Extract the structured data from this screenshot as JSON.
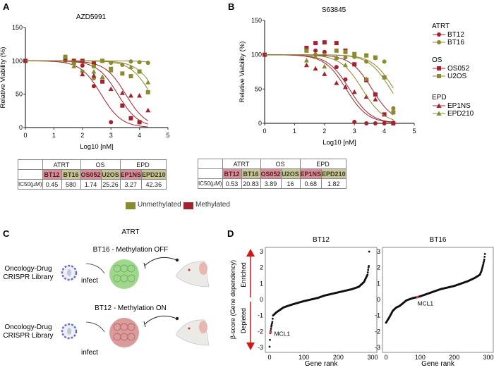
{
  "panels": {
    "a": "A",
    "b": "B",
    "c": "C",
    "d": "D"
  },
  "colors": {
    "methylated": "#a3222d",
    "unmethylated": "#8a8a30"
  },
  "chart_data": [
    {
      "type": "scatter",
      "title": "AZD5991",
      "xlabel": "Log10 [nM]",
      "ylabel": "Relative Viability (%)",
      "xlim": [
        0,
        5
      ],
      "ylim": [
        0,
        150
      ],
      "xticks": [
        "0",
        "1",
        "2",
        "3",
        "4",
        "5"
      ],
      "yticks": [
        "0",
        "50",
        "100",
        "150"
      ],
      "series": [
        {
          "name": "BT12",
          "marker": "circle",
          "group": "methylated",
          "ic50_uM": 0.45,
          "points": [
            [
              0,
              100
            ],
            [
              1.4,
              100
            ],
            [
              1.7,
              98
            ],
            [
              2,
              93
            ],
            [
              2.4,
              62
            ],
            [
              3,
              8
            ]
          ]
        },
        {
          "name": "BT16",
          "marker": "circle",
          "group": "unmethylated",
          "ic50_uM": 580,
          "points": [
            [
              0,
              100
            ],
            [
              1.4,
              100
            ],
            [
              1.7,
              98
            ],
            [
              2,
              84
            ],
            [
              2.4,
              74
            ],
            [
              3,
              97
            ],
            [
              3.4,
              94
            ],
            [
              3.7,
              99
            ],
            [
              4,
              98
            ],
            [
              4.3,
              97
            ]
          ]
        },
        {
          "name": "OS052",
          "marker": "square",
          "group": "methylated",
          "ic50_uM": 1.74,
          "points": [
            [
              0,
              100
            ],
            [
              1.4,
              102
            ],
            [
              1.7,
              100
            ],
            [
              2,
              100
            ],
            [
              2.4,
              96
            ],
            [
              2.7,
              69
            ],
            [
              3.4,
              33
            ],
            [
              3.7,
              14
            ],
            [
              4,
              8
            ]
          ]
        },
        {
          "name": "U2OS",
          "marker": "square",
          "group": "unmethylated",
          "ic50_uM": 25.26,
          "points": [
            [
              1.4,
              106
            ],
            [
              1.7,
              97
            ],
            [
              2.4,
              92
            ],
            [
              2.7,
              100
            ],
            [
              3,
              88
            ],
            [
              3.4,
              81
            ],
            [
              3.7,
              77
            ],
            [
              4,
              84
            ],
            [
              4.3,
              53
            ]
          ]
        },
        {
          "name": "EP1NS",
          "marker": "triangle",
          "group": "methylated",
          "ic50_uM": 3.27,
          "points": [
            [
              2,
              80
            ],
            [
              2.4,
              78
            ],
            [
              3,
              58
            ],
            [
              3.4,
              52
            ],
            [
              3.7,
              48
            ],
            [
              4,
              48
            ],
            [
              4.3,
              26
            ]
          ]
        },
        {
          "name": "EPD210",
          "marker": "triangle",
          "group": "unmethylated",
          "ic50_uM": 42.36,
          "points": [
            [
              1.7,
              92
            ],
            [
              2.4,
              84
            ],
            [
              2.7,
              76
            ],
            [
              3,
              86
            ],
            [
              3.7,
              91
            ],
            [
              4.3,
              68
            ]
          ]
        }
      ]
    },
    {
      "type": "scatter",
      "title": "S63845",
      "xlabel": "Log10 [nM]",
      "ylabel": "Relative Viability (%)",
      "xlim": [
        0,
        5
      ],
      "ylim": [
        0,
        150
      ],
      "xticks": [
        "0",
        "1",
        "2",
        "3",
        "4",
        "5"
      ],
      "yticks": [
        "0",
        "50",
        "100",
        "150"
      ],
      "legend": "right",
      "series": [
        {
          "name": "BT12",
          "marker": "circle",
          "group": "methylated",
          "ic50_uM": 0.53,
          "points": [
            [
              0,
              100
            ],
            [
              1.7,
              106
            ],
            [
              2,
              104
            ],
            [
              2.4,
              82
            ],
            [
              2.7,
              64
            ],
            [
              3,
              2
            ],
            [
              3.4,
              0
            ],
            [
              3.7,
              0
            ],
            [
              4,
              0
            ],
            [
              4.3,
              1
            ]
          ]
        },
        {
          "name": "BT16",
          "marker": "circle",
          "group": "unmethylated",
          "ic50_uM": 20.83,
          "points": [
            [
              1.7,
              100
            ],
            [
              2,
              100
            ],
            [
              2.4,
              95
            ],
            [
              2.7,
              96
            ],
            [
              3,
              97
            ],
            [
              3.4,
              90
            ],
            [
              3.7,
              95
            ],
            [
              4,
              90
            ],
            [
              4.3,
              22
            ]
          ]
        },
        {
          "name": "OS052",
          "marker": "square",
          "group": "methylated",
          "ic50_uM": 3.89,
          "points": [
            [
              0,
              100
            ],
            [
              1.4,
              110
            ],
            [
              1.7,
              117
            ],
            [
              2,
              118
            ],
            [
              2.4,
              117
            ],
            [
              2.7,
              106
            ],
            [
              3,
              86
            ],
            [
              3.4,
              63
            ],
            [
              3.7,
              42
            ],
            [
              4,
              13
            ],
            [
              4.3,
              0
            ]
          ]
        },
        {
          "name": "U2OS",
          "marker": "square",
          "group": "unmethylated",
          "ic50_uM": 16,
          "points": [
            [
              1.4,
              106
            ],
            [
              2.4,
              106
            ],
            [
              2.7,
              104
            ],
            [
              3,
              101
            ],
            [
              3.4,
              99
            ],
            [
              3.7,
              96
            ],
            [
              4,
              67
            ],
            [
              4.3,
              16
            ]
          ]
        },
        {
          "name": "EP1NS",
          "marker": "triangle",
          "group": "methylated",
          "ic50_uM": 0.68,
          "points": [
            [
              1.4,
              85
            ],
            [
              1.7,
              80
            ],
            [
              2,
              72
            ],
            [
              2.4,
              59
            ],
            [
              2.7,
              53
            ],
            [
              3,
              46
            ],
            [
              3.4,
              39
            ],
            [
              3.7,
              35
            ]
          ]
        },
        {
          "name": "EPD210",
          "marker": "triangle",
          "group": "unmethylated",
          "ic50_uM": 1.82,
          "points": [
            [
              1.4,
              92
            ],
            [
              1.7,
              97
            ],
            [
              2,
              83
            ],
            [
              2.4,
              96
            ],
            [
              2.7,
              85
            ],
            [
              3.4,
              65
            ]
          ]
        }
      ]
    },
    {
      "type": "scatter",
      "title": "BT12",
      "xlabel": "Gene rank",
      "ylabel": "β-score (Gene dependency)",
      "xlim": [
        0,
        300
      ],
      "ylim": [
        -3,
        3
      ],
      "xticks": [
        "0",
        "100",
        "200",
        "300"
      ],
      "yticks": [
        "-3",
        "-2",
        "-1",
        "0",
        "1",
        "2",
        "3"
      ],
      "highlight": {
        "label": "MCL1",
        "rank": 3,
        "score": -2.05
      },
      "profile": [
        [
          0,
          -2.95
        ],
        [
          2,
          -2.1
        ],
        [
          5,
          -1.7
        ],
        [
          8,
          -1.4
        ],
        [
          10,
          -1.0
        ],
        [
          20,
          -0.8
        ],
        [
          40,
          -0.5
        ],
        [
          60,
          -0.35
        ],
        [
          80,
          -0.22
        ],
        [
          100,
          -0.1
        ],
        [
          120,
          0
        ],
        [
          140,
          0.1
        ],
        [
          160,
          0.25
        ],
        [
          180,
          0.35
        ],
        [
          200,
          0.45
        ],
        [
          220,
          0.55
        ],
        [
          240,
          0.65
        ],
        [
          260,
          0.8
        ],
        [
          275,
          1.1
        ],
        [
          285,
          1.55
        ],
        [
          288,
          2.0
        ],
        [
          289,
          2.1
        ],
        [
          290,
          3.0
        ]
      ]
    },
    {
      "type": "scatter",
      "title": "BT16",
      "xlabel": "Gene rank",
      "ylabel": "",
      "xlim": [
        0,
        300
      ],
      "ylim": [
        -3,
        3
      ],
      "xticks": [
        "0",
        "100",
        "200",
        "300"
      ],
      "yticks": [
        "-3",
        "-2",
        "-1",
        "0",
        "1",
        "2",
        "3"
      ],
      "highlight": {
        "label": "MCL1",
        "rank": 92,
        "score": 0.15
      },
      "profile": [
        [
          0,
          -1.45
        ],
        [
          10,
          -1.1
        ],
        [
          20,
          -0.7
        ],
        [
          30,
          -0.5
        ],
        [
          40,
          -0.4
        ],
        [
          60,
          -0.05
        ],
        [
          80,
          0.1
        ],
        [
          92,
          0.15
        ],
        [
          100,
          0.2
        ],
        [
          120,
          0.35
        ],
        [
          140,
          0.5
        ],
        [
          160,
          0.65
        ],
        [
          180,
          0.75
        ],
        [
          200,
          0.85
        ],
        [
          220,
          1.0
        ],
        [
          240,
          1.15
        ],
        [
          260,
          1.35
        ],
        [
          275,
          1.55
        ],
        [
          280,
          1.8
        ],
        [
          285,
          2.2
        ],
        [
          288,
          2.5
        ],
        [
          290,
          2.85
        ]
      ]
    }
  ],
  "legend_b": {
    "groups": [
      {
        "title": "ATRT",
        "items": [
          "BT12",
          "BT16"
        ]
      },
      {
        "title": "OS",
        "items": [
          "OS052",
          "U2OS"
        ]
      },
      {
        "title": "EPD",
        "items": [
          "EP1NS",
          "EPD210"
        ]
      }
    ]
  },
  "tables": [
    {
      "groups": [
        "ATRT",
        "OS",
        "EPD"
      ],
      "cells": [
        "BT12",
        "BT16",
        "OS052",
        "U2OS",
        "EP1NS",
        "EPD210"
      ],
      "row_label": "IC50(µM)",
      "values": [
        "0.45",
        "580",
        "1.74",
        "25.26",
        "3.27",
        "42.36"
      ]
    },
    {
      "groups": [
        "ATRT",
        "OS",
        "EPD"
      ],
      "cells": [
        "BT12",
        "BT16",
        "OS052",
        "U2OS",
        "EP1NS",
        "EPD210"
      ],
      "row_label": "IC50(µM)",
      "values": [
        "0.53",
        "20.83",
        "3.89",
        "16",
        "0.68",
        "1.82"
      ]
    }
  ],
  "color_legend": {
    "unmethylated": "Unmethylated",
    "methylated": "Methylated"
  },
  "panel_c": {
    "title": "ATRT",
    "top_label": "BT16 - Methylation OFF",
    "bottom_label": "BT12 - Methylation ON",
    "library": [
      "Oncology-Drug",
      "CRISPR Library"
    ],
    "infect": "infect"
  },
  "panel_d": {
    "enriched": "Enriched",
    "depleted": "Depleted"
  }
}
